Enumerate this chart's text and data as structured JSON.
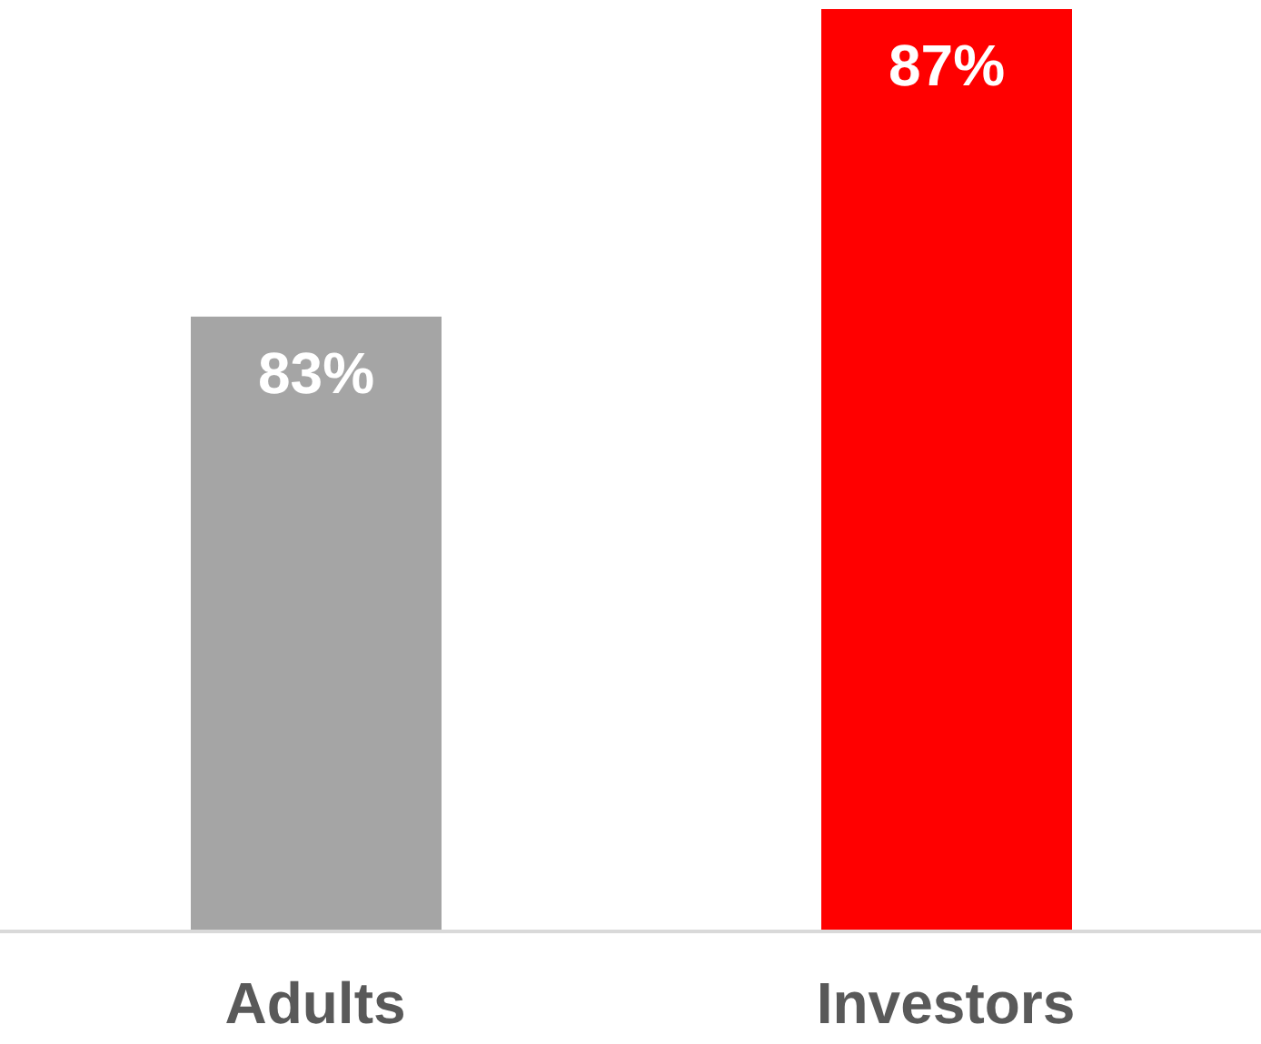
{
  "chart_data": {
    "type": "bar",
    "categories": [
      "Adults",
      "Investors"
    ],
    "values": [
      83,
      87
    ],
    "colors": [
      "#a5a5a5",
      "#ff0000"
    ],
    "value_labels": [
      "83%",
      "87%"
    ],
    "ylim": [
      75,
      87
    ],
    "tick_labels": "x"
  }
}
